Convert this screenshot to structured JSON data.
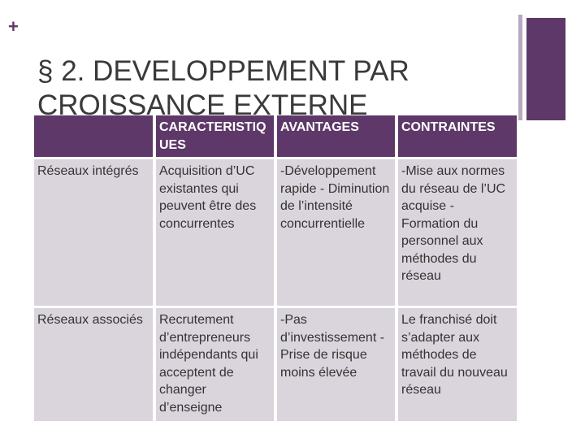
{
  "slide": {
    "plus_symbol": "+",
    "title_line1": "§ 2. DEVELOPPEMENT PAR",
    "title_line2": "CROISSANCE EXTERNE"
  },
  "table": {
    "headers": [
      "",
      "CARACTERISTIQUES",
      "AVANTAGES",
      "CONTRAINTES"
    ],
    "rows": [
      {
        "label": "Réseaux intégrés",
        "caracteristiques": "Acquisition d’UC existantes qui peuvent être des concurrentes",
        "avantages": "-Développement rapide - Diminution de l’intensité concurrentielle",
        "contraintes": "-Mise aux normes du réseau de l’UC acquise - Formation du personnel aux méthodes du réseau"
      },
      {
        "label": "Réseaux associés",
        "caracteristiques": "Recrutement d’entrepreneurs indépendants qui acceptent de changer d’enseigne",
        "avantages": "-Pas d’investissement - Prise de risque moins élevée",
        "contraintes": "Le franchisé doit s’adapter aux méthodes de travail du nouveau réseau"
      }
    ]
  },
  "colors": {
    "accent": "#5e3868",
    "accent_light": "#b9a9c0",
    "cell_background": "#dad4dc",
    "title_text": "#3a3a3a"
  }
}
